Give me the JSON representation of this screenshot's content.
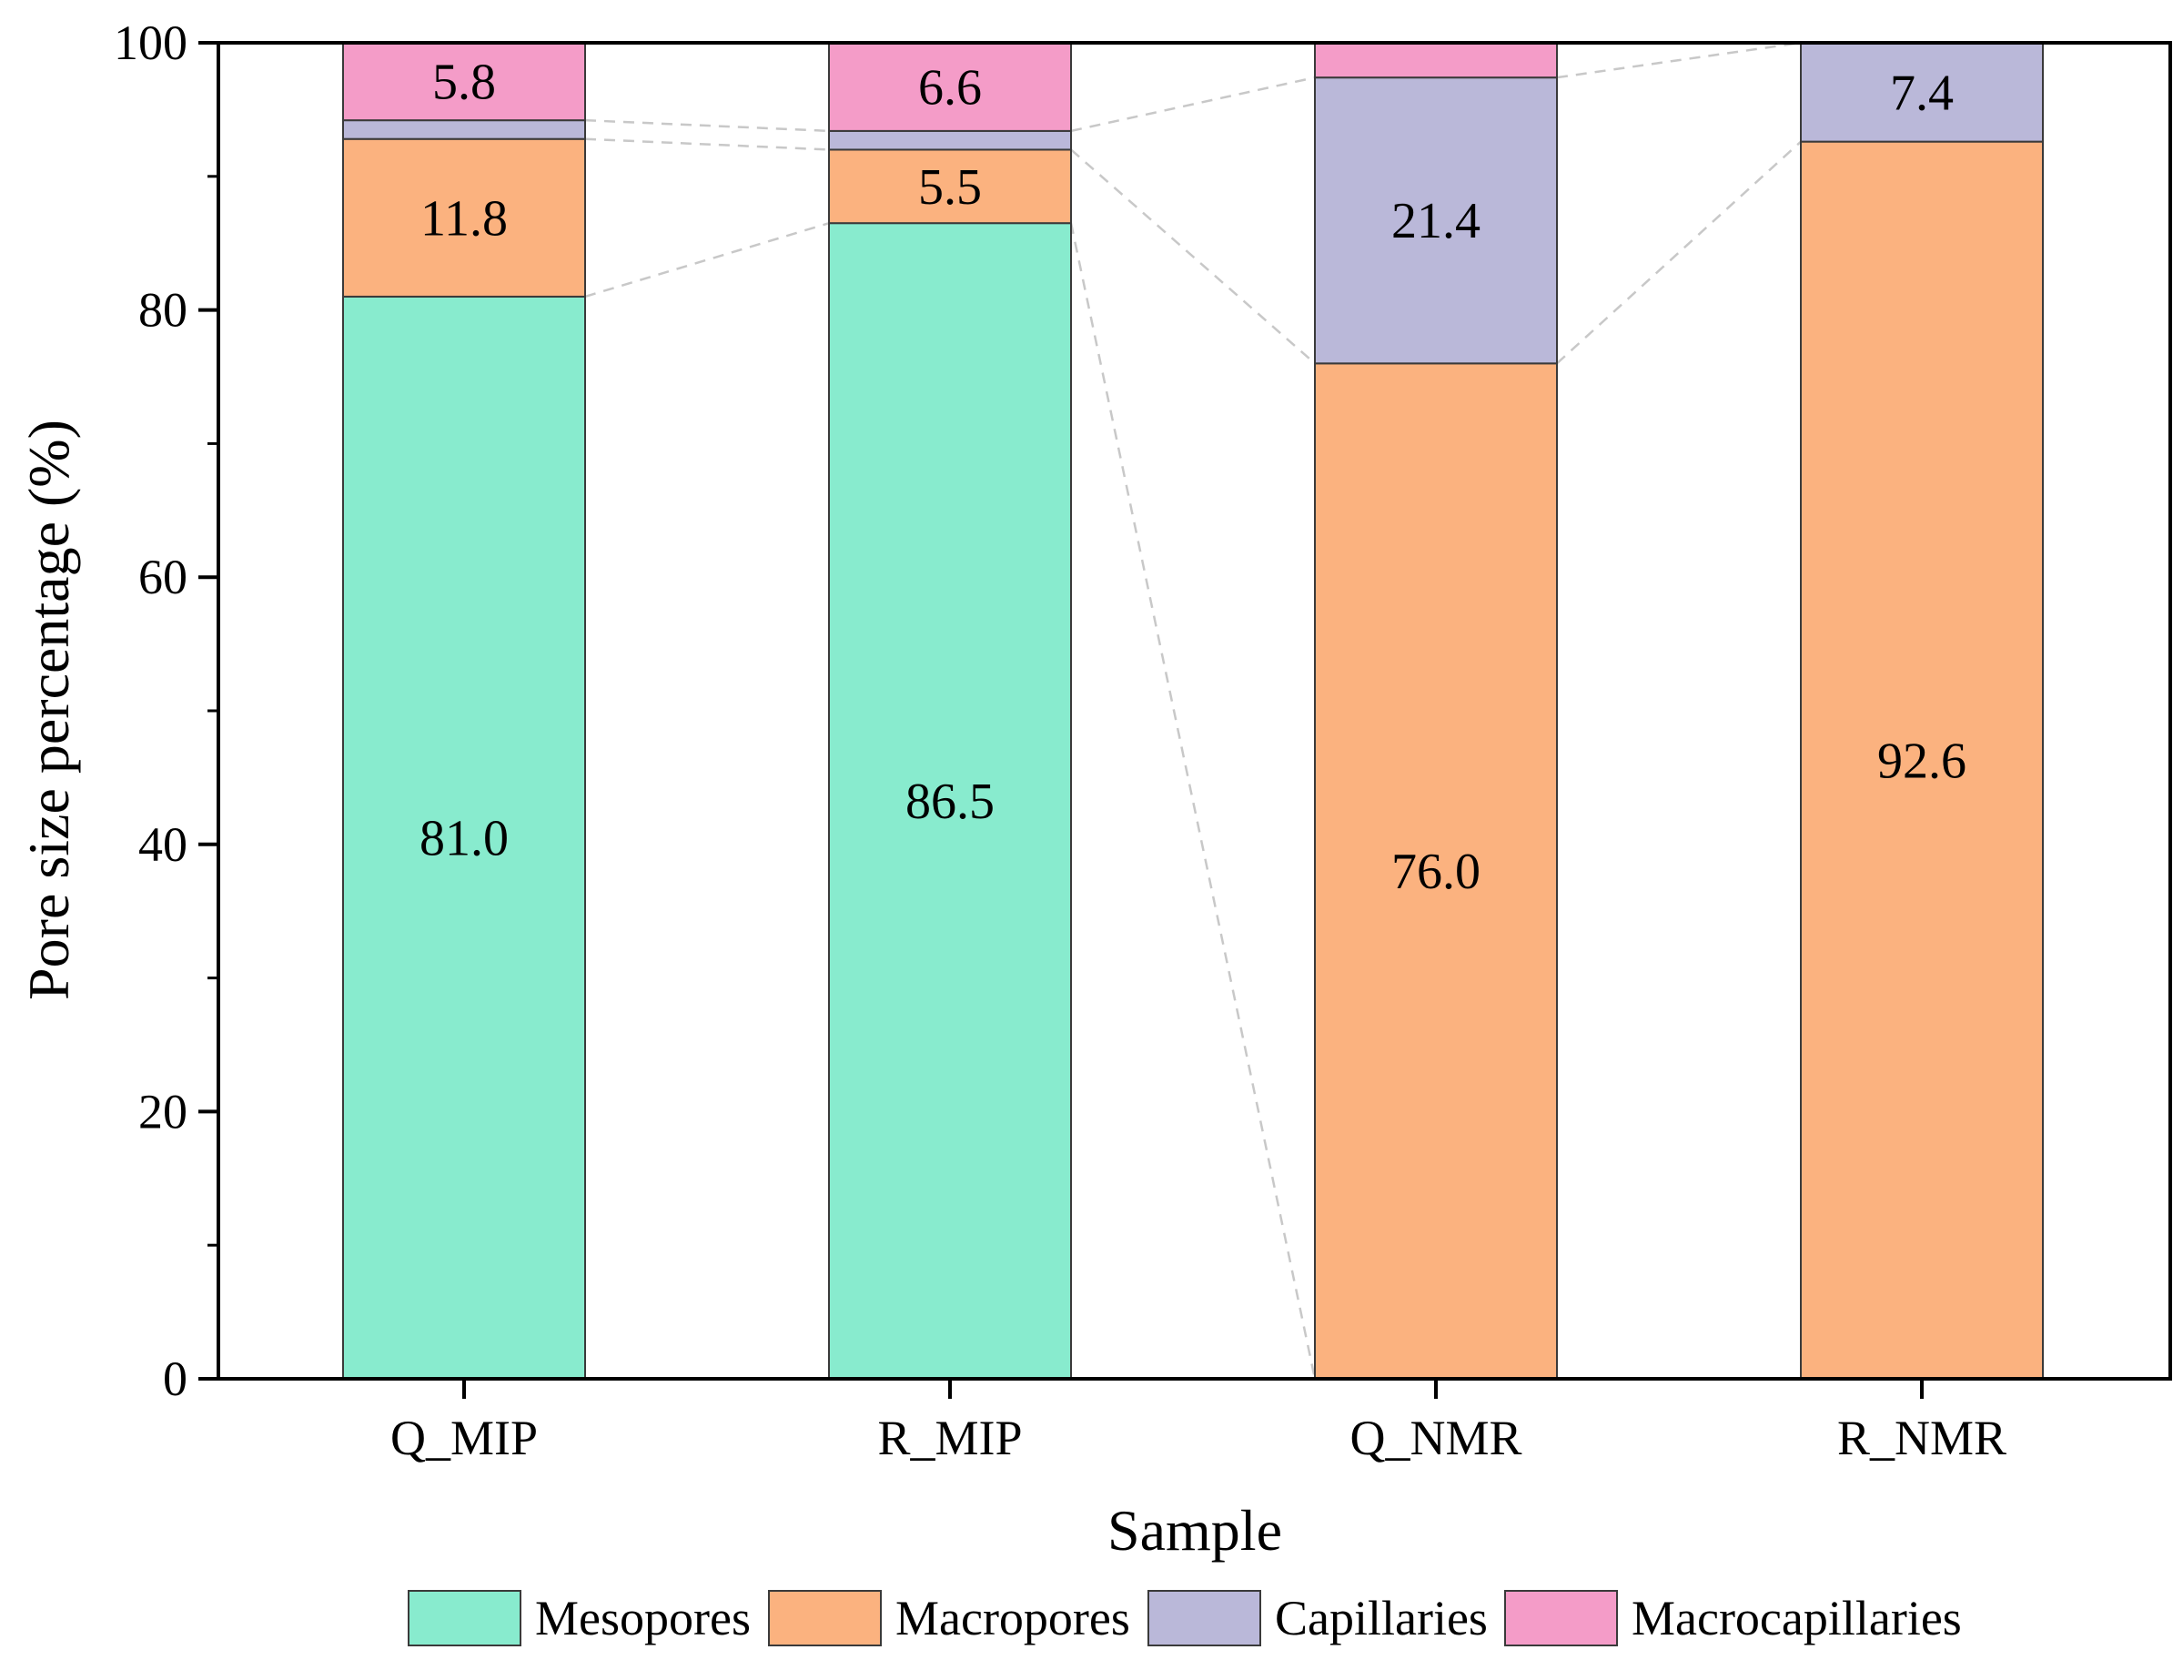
{
  "chart_data": {
    "type": "bar",
    "stacked": true,
    "title": "",
    "xlabel": "Sample",
    "ylabel": "Pore size percentage (%)",
    "ylim": [
      0,
      100
    ],
    "yticks": [
      0,
      20,
      40,
      60,
      80,
      100
    ],
    "categories": [
      "Q_MIP",
      "R_MIP",
      "Q_NMR",
      "R_NMR"
    ],
    "series": [
      {
        "name": "Mesopores",
        "color": "#88EBCE",
        "values": [
          81.0,
          86.5,
          0,
          0
        ]
      },
      {
        "name": "Macropores",
        "color": "#FBB27F",
        "values": [
          11.8,
          5.5,
          76.0,
          92.6
        ]
      },
      {
        "name": "Capillaries",
        "color": "#BAB8D9",
        "values": [
          1.4,
          1.4,
          21.4,
          7.4
        ]
      },
      {
        "name": "Macrocapillaries",
        "color": "#F49CC8",
        "values": [
          5.8,
          6.6,
          2.6,
          0
        ]
      }
    ],
    "data_labels": [
      {
        "category": "Q_MIP",
        "series": "Mesopores",
        "text": "81.0"
      },
      {
        "category": "Q_MIP",
        "series": "Macropores",
        "text": "11.8"
      },
      {
        "category": "Q_MIP",
        "series": "Macrocapillaries",
        "text": "5.8"
      },
      {
        "category": "R_MIP",
        "series": "Mesopores",
        "text": "86.5"
      },
      {
        "category": "R_MIP",
        "series": "Macropores",
        "text": "5.5"
      },
      {
        "category": "R_MIP",
        "series": "Macrocapillaries",
        "text": "6.6"
      },
      {
        "category": "Q_NMR",
        "series": "Macropores",
        "text": "76.0"
      },
      {
        "category": "Q_NMR",
        "series": "Capillaries",
        "text": "21.4"
      },
      {
        "category": "R_NMR",
        "series": "Macropores",
        "text": "92.6"
      },
      {
        "category": "R_NMR",
        "series": "Capillaries",
        "text": "7.4"
      }
    ],
    "connector_lines": true,
    "legend": {
      "position": "bottom",
      "entries": [
        "Mesopores",
        "Macropores",
        "Capillaries",
        "Macrocapillaries"
      ]
    }
  }
}
